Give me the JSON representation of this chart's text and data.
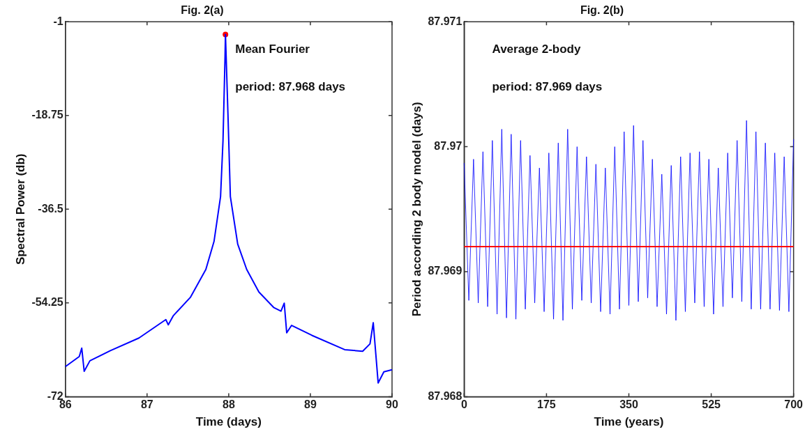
{
  "chart_data": [
    {
      "type": "line",
      "title": "Fig. 2(a)",
      "xlabel": "Time (days)",
      "ylabel": "Spectral Power (db)",
      "xlim": [
        86,
        90
      ],
      "xticks": [
        86,
        87,
        88,
        89,
        90
      ],
      "ylim": [
        -72,
        -1
      ],
      "yticks": [
        -72,
        -54.25,
        -36.5,
        -18.75,
        -1
      ],
      "grid": false,
      "legend": false,
      "annotations": [
        "Mean Fourier",
        "period: 87.968 days"
      ],
      "series": [
        {
          "color": "#0000ff",
          "marker": "none",
          "x": [
            86,
            86.17,
            86.2,
            86.23,
            86.3,
            86.55,
            86.9,
            87.23,
            87.26,
            87.32,
            87.53,
            87.72,
            87.82,
            87.9,
            87.93,
            87.955,
            87.96,
            87.99,
            88.02,
            88.11,
            88.22,
            88.37,
            88.55,
            88.64,
            88.68,
            88.71,
            88.77,
            89.02,
            89.42,
            89.64,
            89.73,
            89.77,
            89.83,
            89.9,
            90
          ],
          "values": [
            -66.3,
            -64.4,
            -62.8,
            -67.2,
            -65.2,
            -63.3,
            -60.9,
            -57.4,
            -58.4,
            -56.7,
            -53.2,
            -47.9,
            -42.6,
            -34.1,
            -23.5,
            -7.5,
            -3.4,
            -18.2,
            -34.1,
            -43.1,
            -47.9,
            -52.2,
            -55.1,
            -55.8,
            -54.3,
            -59.9,
            -58.5,
            -60.4,
            -63.1,
            -63.4,
            -62,
            -58,
            -69.4,
            -67.3,
            -66.9
          ]
        },
        {
          "type": "scatter",
          "color": "#ff0000",
          "marker": "circle",
          "x": [
            87.96
          ],
          "values": [
            -3.4
          ]
        }
      ]
    },
    {
      "type": "line",
      "title": "Fig. 2(b)",
      "xlabel": "Time (years)",
      "ylabel": "Period according 2 body model (days)",
      "xlim": [
        0,
        700
      ],
      "xticks": [
        0,
        175,
        350,
        525,
        700
      ],
      "ylim": [
        87.968,
        87.971
      ],
      "yticks": [
        87.968,
        87.969,
        87.97,
        87.971
      ],
      "grid": false,
      "legend": false,
      "annotations": [
        "Average 2-body",
        "period: 87.969 days"
      ],
      "ref_lines": [
        {
          "axis": "y",
          "value": 87.9692,
          "color": "#ff0000"
        }
      ],
      "series": [
        {
          "color": "#0000ff",
          "marker": "none",
          "x": [
            0,
            10,
            20,
            30,
            40,
            50,
            60,
            70,
            80,
            90,
            100,
            110,
            120,
            130,
            140,
            150,
            160,
            170,
            180,
            190,
            200,
            210,
            220,
            230,
            240,
            250,
            260,
            270,
            280,
            290,
            300,
            310,
            320,
            330,
            340,
            350,
            360,
            370,
            380,
            390,
            400,
            410,
            420,
            430,
            440,
            450,
            460,
            470,
            480,
            490,
            500,
            510,
            520,
            530,
            540,
            550,
            560,
            570,
            580,
            590,
            600,
            610,
            620,
            630,
            640,
            650,
            660,
            670,
            680,
            690,
            700
          ],
          "values": [
            87.96987,
            87.96877,
            87.9699,
            87.96875,
            87.96996,
            87.96872,
            87.97005,
            87.96866,
            87.97014,
            87.96863,
            87.9701,
            87.96862,
            87.97005,
            87.9687,
            87.96993,
            87.96875,
            87.96983,
            87.96868,
            87.96995,
            87.96862,
            87.97003,
            87.96861,
            87.97014,
            87.9687,
            87.97,
            87.96877,
            87.96992,
            87.96875,
            87.96986,
            87.96868,
            87.96983,
            87.96866,
            87.97,
            87.9687,
            87.97012,
            87.96873,
            87.97017,
            87.96876,
            87.97005,
            87.96879,
            87.9699,
            87.96872,
            87.96978,
            87.96866,
            87.96985,
            87.96861,
            87.96992,
            87.96868,
            87.96995,
            87.96875,
            87.96996,
            87.96872,
            87.9699,
            87.96866,
            87.96983,
            87.96872,
            87.96995,
            87.96879,
            87.97005,
            87.96876,
            87.97021,
            87.9687,
            87.97012,
            87.9687,
            87.97003,
            87.9687,
            87.96995,
            87.96869,
            87.96992,
            87.96868,
            87.97006
          ]
        }
      ]
    }
  ]
}
